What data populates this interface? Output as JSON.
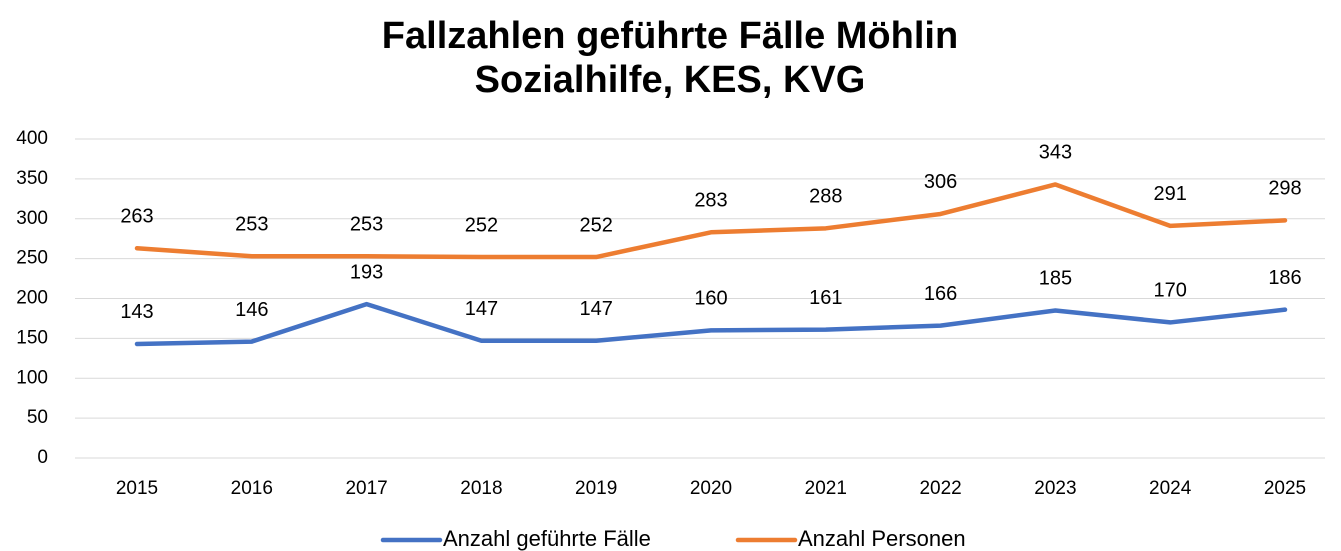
{
  "chart_data": {
    "type": "line",
    "title": "Fallzahlen geführte Fälle Möhlin",
    "subtitle": "Sozialhilfe, KES, KVG",
    "categories": [
      "2015",
      "2016",
      "2017",
      "2018",
      "2019",
      "2020",
      "2021",
      "2022",
      "2023",
      "2024",
      "2025"
    ],
    "series": [
      {
        "name": "Anzahl geführte Fälle",
        "color": "#4472c4",
        "values": [
          143,
          146,
          193,
          147,
          147,
          160,
          161,
          166,
          185,
          170,
          186
        ]
      },
      {
        "name": "Anzahl Personen",
        "color": "#ed7d31",
        "values": [
          263,
          253,
          253,
          252,
          252,
          283,
          288,
          306,
          343,
          291,
          298
        ]
      }
    ],
    "ylim": [
      0,
      400
    ],
    "yticks": [
      0,
      50,
      100,
      150,
      200,
      250,
      300,
      350,
      400
    ],
    "grid": true,
    "legend": "bottom"
  }
}
